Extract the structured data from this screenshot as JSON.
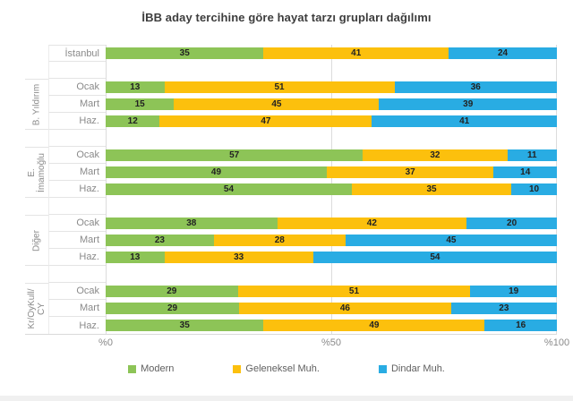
{
  "title": "İBB aday tercihine göre hayat tarzı grupları dağılımı",
  "x_axis": {
    "ticks": [
      "%0",
      "%50",
      "%100"
    ]
  },
  "legend": [
    {
      "label": "Modern",
      "color": "#8dc457"
    },
    {
      "label": "Geleneksel Muh.",
      "color": "#fcc00d"
    },
    {
      "label": "Dindar Muh.",
      "color": "#29ace3"
    }
  ],
  "chart_data": {
    "type": "bar",
    "orientation": "horizontal",
    "stacked": true,
    "percent_stacked": true,
    "title": "İBB aday tercihine göre hayat tarzı grupları dağılımı",
    "series_names": [
      "Modern",
      "Geleneksel Muh.",
      "Dindar Muh."
    ],
    "series_colors": [
      "#8dc457",
      "#fcc00d",
      "#29ace3"
    ],
    "x_ticks": [
      "%0",
      "%50",
      "%100"
    ],
    "xlim": [
      0,
      100
    ],
    "legend_position": "bottom",
    "grid": "vertical",
    "groups": [
      {
        "label": "",
        "rows": [
          {
            "label": "İstanbul",
            "values": [
              35,
              41,
              24
            ]
          }
        ]
      },
      {
        "label": "B. Yıldırım",
        "rows": [
          {
            "label": "Ocak",
            "values": [
              13,
              51,
              36
            ]
          },
          {
            "label": "Mart",
            "values": [
              15,
              45,
              39
            ]
          },
          {
            "label": "Haz.",
            "values": [
              12,
              47,
              41
            ]
          }
        ]
      },
      {
        "label": "E. İmamoğlu",
        "rows": [
          {
            "label": "Ocak",
            "values": [
              57,
              32,
              11
            ]
          },
          {
            "label": "Mart",
            "values": [
              49,
              37,
              14
            ]
          },
          {
            "label": "Haz.",
            "values": [
              54,
              35,
              10
            ]
          }
        ]
      },
      {
        "label": "Diğer",
        "rows": [
          {
            "label": "Ocak",
            "values": [
              38,
              42,
              20
            ]
          },
          {
            "label": "Mart",
            "values": [
              23,
              28,
              45
            ]
          },
          {
            "label": "Haz.",
            "values": [
              13,
              33,
              54
            ]
          }
        ]
      },
      {
        "label": "Kr/OyKull/ CY",
        "rows": [
          {
            "label": "Ocak",
            "values": [
              29,
              51,
              19
            ]
          },
          {
            "label": "Mart",
            "values": [
              29,
              46,
              23
            ]
          },
          {
            "label": "Haz.",
            "values": [
              35,
              49,
              16
            ]
          }
        ]
      }
    ]
  }
}
